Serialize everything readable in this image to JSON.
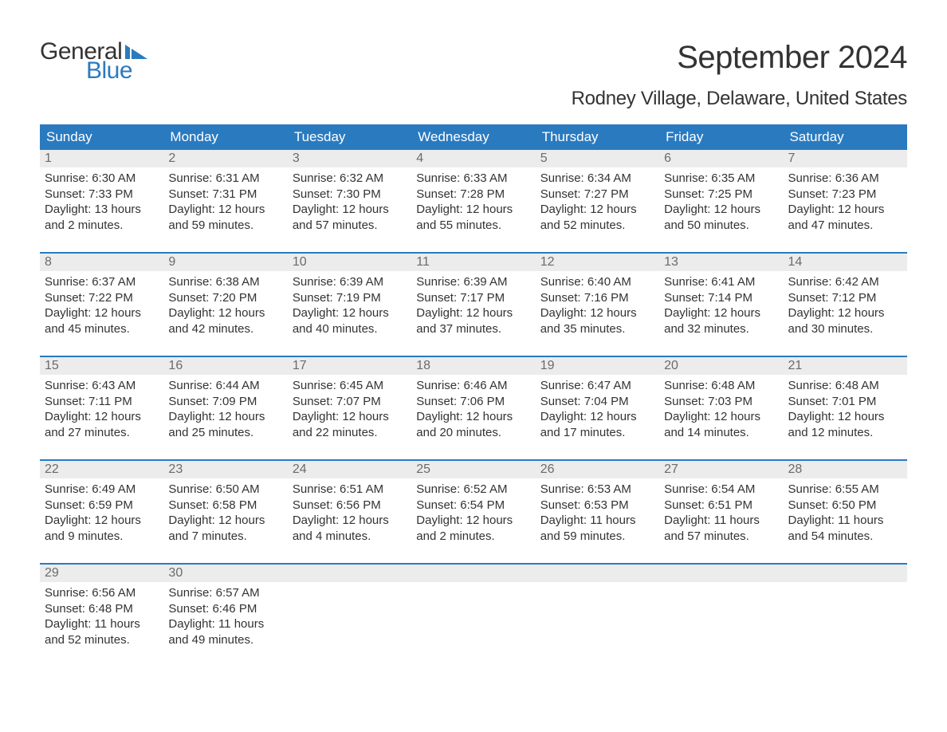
{
  "logo": {
    "word1": "General",
    "word2": "Blue",
    "flag_color": "#2a7ac0"
  },
  "title": "September 2024",
  "subtitle": "Rodney Village, Delaware, United States",
  "colors": {
    "header_bg": "#2a7ac0",
    "header_text": "#ffffff",
    "daynum_bg": "#ececec",
    "daynum_text": "#6b6b6b",
    "body_text": "#333333",
    "page_bg": "#ffffff",
    "week_border": "#2a7ac0"
  },
  "fontsizes": {
    "title": 40,
    "subtitle": 24,
    "weekday": 17,
    "daynum": 16,
    "body": 15
  },
  "weekdays": [
    "Sunday",
    "Monday",
    "Tuesday",
    "Wednesday",
    "Thursday",
    "Friday",
    "Saturday"
  ],
  "labels": {
    "sunrise": "Sunrise:",
    "sunset": "Sunset:",
    "daylight": "Daylight:"
  },
  "weeks": [
    [
      {
        "day": "1",
        "sunrise": "6:30 AM",
        "sunset": "7:33 PM",
        "daylight": "13 hours and 2 minutes."
      },
      {
        "day": "2",
        "sunrise": "6:31 AM",
        "sunset": "7:31 PM",
        "daylight": "12 hours and 59 minutes."
      },
      {
        "day": "3",
        "sunrise": "6:32 AM",
        "sunset": "7:30 PM",
        "daylight": "12 hours and 57 minutes."
      },
      {
        "day": "4",
        "sunrise": "6:33 AM",
        "sunset": "7:28 PM",
        "daylight": "12 hours and 55 minutes."
      },
      {
        "day": "5",
        "sunrise": "6:34 AM",
        "sunset": "7:27 PM",
        "daylight": "12 hours and 52 minutes."
      },
      {
        "day": "6",
        "sunrise": "6:35 AM",
        "sunset": "7:25 PM",
        "daylight": "12 hours and 50 minutes."
      },
      {
        "day": "7",
        "sunrise": "6:36 AM",
        "sunset": "7:23 PM",
        "daylight": "12 hours and 47 minutes."
      }
    ],
    [
      {
        "day": "8",
        "sunrise": "6:37 AM",
        "sunset": "7:22 PM",
        "daylight": "12 hours and 45 minutes."
      },
      {
        "day": "9",
        "sunrise": "6:38 AM",
        "sunset": "7:20 PM",
        "daylight": "12 hours and 42 minutes."
      },
      {
        "day": "10",
        "sunrise": "6:39 AM",
        "sunset": "7:19 PM",
        "daylight": "12 hours and 40 minutes."
      },
      {
        "day": "11",
        "sunrise": "6:39 AM",
        "sunset": "7:17 PM",
        "daylight": "12 hours and 37 minutes."
      },
      {
        "day": "12",
        "sunrise": "6:40 AM",
        "sunset": "7:16 PM",
        "daylight": "12 hours and 35 minutes."
      },
      {
        "day": "13",
        "sunrise": "6:41 AM",
        "sunset": "7:14 PM",
        "daylight": "12 hours and 32 minutes."
      },
      {
        "day": "14",
        "sunrise": "6:42 AM",
        "sunset": "7:12 PM",
        "daylight": "12 hours and 30 minutes."
      }
    ],
    [
      {
        "day": "15",
        "sunrise": "6:43 AM",
        "sunset": "7:11 PM",
        "daylight": "12 hours and 27 minutes."
      },
      {
        "day": "16",
        "sunrise": "6:44 AM",
        "sunset": "7:09 PM",
        "daylight": "12 hours and 25 minutes."
      },
      {
        "day": "17",
        "sunrise": "6:45 AM",
        "sunset": "7:07 PM",
        "daylight": "12 hours and 22 minutes."
      },
      {
        "day": "18",
        "sunrise": "6:46 AM",
        "sunset": "7:06 PM",
        "daylight": "12 hours and 20 minutes."
      },
      {
        "day": "19",
        "sunrise": "6:47 AM",
        "sunset": "7:04 PM",
        "daylight": "12 hours and 17 minutes."
      },
      {
        "day": "20",
        "sunrise": "6:48 AM",
        "sunset": "7:03 PM",
        "daylight": "12 hours and 14 minutes."
      },
      {
        "day": "21",
        "sunrise": "6:48 AM",
        "sunset": "7:01 PM",
        "daylight": "12 hours and 12 minutes."
      }
    ],
    [
      {
        "day": "22",
        "sunrise": "6:49 AM",
        "sunset": "6:59 PM",
        "daylight": "12 hours and 9 minutes."
      },
      {
        "day": "23",
        "sunrise": "6:50 AM",
        "sunset": "6:58 PM",
        "daylight": "12 hours and 7 minutes."
      },
      {
        "day": "24",
        "sunrise": "6:51 AM",
        "sunset": "6:56 PM",
        "daylight": "12 hours and 4 minutes."
      },
      {
        "day": "25",
        "sunrise": "6:52 AM",
        "sunset": "6:54 PM",
        "daylight": "12 hours and 2 minutes."
      },
      {
        "day": "26",
        "sunrise": "6:53 AM",
        "sunset": "6:53 PM",
        "daylight": "11 hours and 59 minutes."
      },
      {
        "day": "27",
        "sunrise": "6:54 AM",
        "sunset": "6:51 PM",
        "daylight": "11 hours and 57 minutes."
      },
      {
        "day": "28",
        "sunrise": "6:55 AM",
        "sunset": "6:50 PM",
        "daylight": "11 hours and 54 minutes."
      }
    ],
    [
      {
        "day": "29",
        "sunrise": "6:56 AM",
        "sunset": "6:48 PM",
        "daylight": "11 hours and 52 minutes."
      },
      {
        "day": "30",
        "sunrise": "6:57 AM",
        "sunset": "6:46 PM",
        "daylight": "11 hours and 49 minutes."
      },
      null,
      null,
      null,
      null,
      null
    ]
  ]
}
